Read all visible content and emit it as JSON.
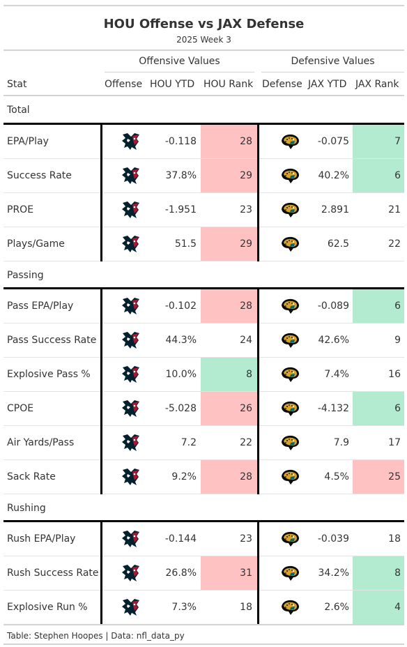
{
  "title": "HOU Offense vs JAX Defense",
  "subtitle": "2025 Week 3",
  "spanners": {
    "offense": "Offensive Values",
    "defense": "Defensive Values"
  },
  "columns": {
    "stat": "Stat",
    "offense": "Offense",
    "hou_ytd": "HOU YTD",
    "hou_rank": "HOU Rank",
    "defense": "Defense",
    "jax_ytd": "JAX YTD",
    "jax_rank": "JAX Rank"
  },
  "colors": {
    "bad": "#ffc2c2",
    "good": "#b3ebd1",
    "neutral": "#ffffff"
  },
  "groups": [
    {
      "name": "Total",
      "rows": [
        {
          "stat": "EPA/Play",
          "hou_ytd": "-0.118",
          "hou_rank": "28",
          "hou_color": "bad",
          "jax_ytd": "-0.075",
          "jax_rank": "7",
          "jax_color": "good"
        },
        {
          "stat": "Success Rate",
          "hou_ytd": "37.8%",
          "hou_rank": "29",
          "hou_color": "bad",
          "jax_ytd": "40.2%",
          "jax_rank": "6",
          "jax_color": "good"
        },
        {
          "stat": "PROE",
          "hou_ytd": "-1.951",
          "hou_rank": "23",
          "hou_color": "neutral",
          "jax_ytd": "2.891",
          "jax_rank": "21",
          "jax_color": "neutral"
        },
        {
          "stat": "Plays/Game",
          "hou_ytd": "51.5",
          "hou_rank": "29",
          "hou_color": "bad",
          "jax_ytd": "62.5",
          "jax_rank": "22",
          "jax_color": "neutral"
        }
      ]
    },
    {
      "name": "Passing",
      "rows": [
        {
          "stat": "Pass EPA/Play",
          "hou_ytd": "-0.102",
          "hou_rank": "28",
          "hou_color": "bad",
          "jax_ytd": "-0.089",
          "jax_rank": "6",
          "jax_color": "good"
        },
        {
          "stat": "Pass Success Rate",
          "hou_ytd": "44.3%",
          "hou_rank": "24",
          "hou_color": "neutral",
          "jax_ytd": "42.6%",
          "jax_rank": "9",
          "jax_color": "neutral"
        },
        {
          "stat": "Explosive Pass %",
          "hou_ytd": "10.0%",
          "hou_rank": "8",
          "hou_color": "good",
          "jax_ytd": "7.4%",
          "jax_rank": "16",
          "jax_color": "neutral"
        },
        {
          "stat": "CPOE",
          "hou_ytd": "-5.028",
          "hou_rank": "26",
          "hou_color": "bad",
          "jax_ytd": "-4.132",
          "jax_rank": "6",
          "jax_color": "good"
        },
        {
          "stat": "Air Yards/Pass",
          "hou_ytd": "7.2",
          "hou_rank": "22",
          "hou_color": "neutral",
          "jax_ytd": "7.9",
          "jax_rank": "17",
          "jax_color": "neutral"
        },
        {
          "stat": "Sack Rate",
          "hou_ytd": "9.2%",
          "hou_rank": "28",
          "hou_color": "bad",
          "jax_ytd": "4.5%",
          "jax_rank": "25",
          "jax_color": "bad"
        }
      ]
    },
    {
      "name": "Rushing",
      "rows": [
        {
          "stat": "Rush EPA/Play",
          "hou_ytd": "-0.144",
          "hou_rank": "23",
          "hou_color": "neutral",
          "jax_ytd": "-0.039",
          "jax_rank": "18",
          "jax_color": "neutral"
        },
        {
          "stat": "Rush Success Rate",
          "hou_ytd": "26.8%",
          "hou_rank": "31",
          "hou_color": "bad",
          "jax_ytd": "34.2%",
          "jax_rank": "8",
          "jax_color": "good"
        },
        {
          "stat": "Explosive Run %",
          "hou_ytd": "7.3%",
          "hou_rank": "18",
          "hou_color": "neutral",
          "jax_ytd": "2.6%",
          "jax_rank": "4",
          "jax_color": "good"
        }
      ]
    }
  ],
  "icons": {
    "offense_logo": "texans-logo-icon",
    "defense_logo": "jaguars-logo-icon"
  },
  "footer": "Table: Stephen Hoopes | Data: nfl_data_py"
}
